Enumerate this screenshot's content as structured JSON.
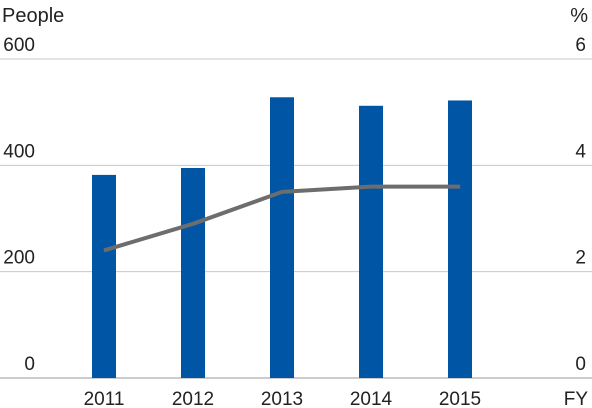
{
  "chart_data": {
    "type": "bar",
    "left_axis_title": "People",
    "right_axis_title": "%",
    "x_axis_label": "FY",
    "categories": [
      "2011",
      "2012",
      "2013",
      "2014",
      "2015"
    ],
    "series": [
      {
        "type": "bar",
        "axis": "left",
        "values": [
          382,
          395,
          528,
          512,
          522
        ]
      },
      {
        "type": "line",
        "axis": "right",
        "values": [
          2.4,
          2.9,
          3.5,
          3.6,
          3.6
        ]
      }
    ],
    "left_axis": {
      "min": 0,
      "max": 600,
      "ticks": [
        "0",
        "200",
        "400",
        "600"
      ]
    },
    "right_axis": {
      "min": 0,
      "max": 6,
      "ticks": [
        "0",
        "2",
        "4",
        "6"
      ]
    },
    "grid": true,
    "colors": {
      "bar": "#0055a5",
      "line": "#6d6d6d",
      "grid": "#c8c8c8",
      "axis": "#999999"
    }
  }
}
